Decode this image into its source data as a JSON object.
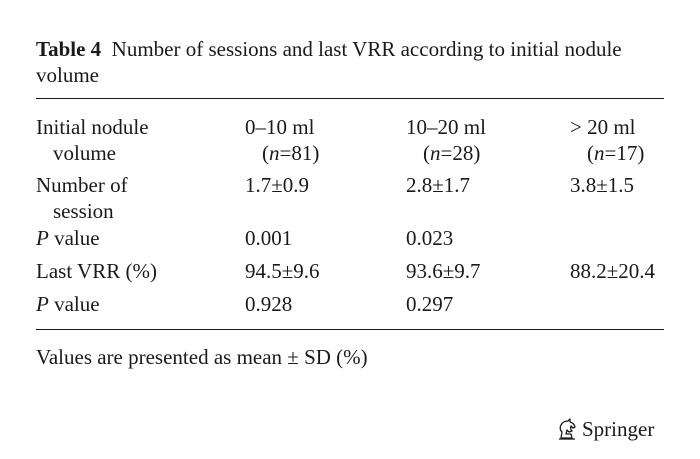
{
  "caption": {
    "label": "Table 4",
    "text": "Number of sessions and last VRR according to initial nodule",
    "text_cont": "volume"
  },
  "table": {
    "header": [
      {
        "line1": "Initial nodule",
        "line2": "volume"
      },
      {
        "line1": "0–10 ml",
        "n": "81"
      },
      {
        "line1": "10–20 ml",
        "n": "28"
      },
      {
        "line1": "> 20 ml",
        "n": "17"
      }
    ],
    "rows": [
      {
        "label1": "Number of",
        "label2": "session",
        "v1": "1.7±0.9",
        "v2": "2.8±1.7",
        "v3": "3.8±1.5"
      },
      {
        "label_italic": "P",
        "label_rest": " value",
        "v1": "0.001",
        "v2": "0.023",
        "v3": ""
      },
      {
        "label": "Last VRR (%)",
        "v1": "94.5±9.6",
        "v2": "93.6±9.7",
        "v3": "88.2±20.4"
      },
      {
        "label_italic": "P",
        "label_rest": " value",
        "v1": "0.928",
        "v2": "0.297",
        "v3": ""
      }
    ]
  },
  "footnote": "Values are presented as mean ± SD (%)",
  "publisher": {
    "name": "Springer",
    "logo_icon": "springer-horse-icon"
  }
}
